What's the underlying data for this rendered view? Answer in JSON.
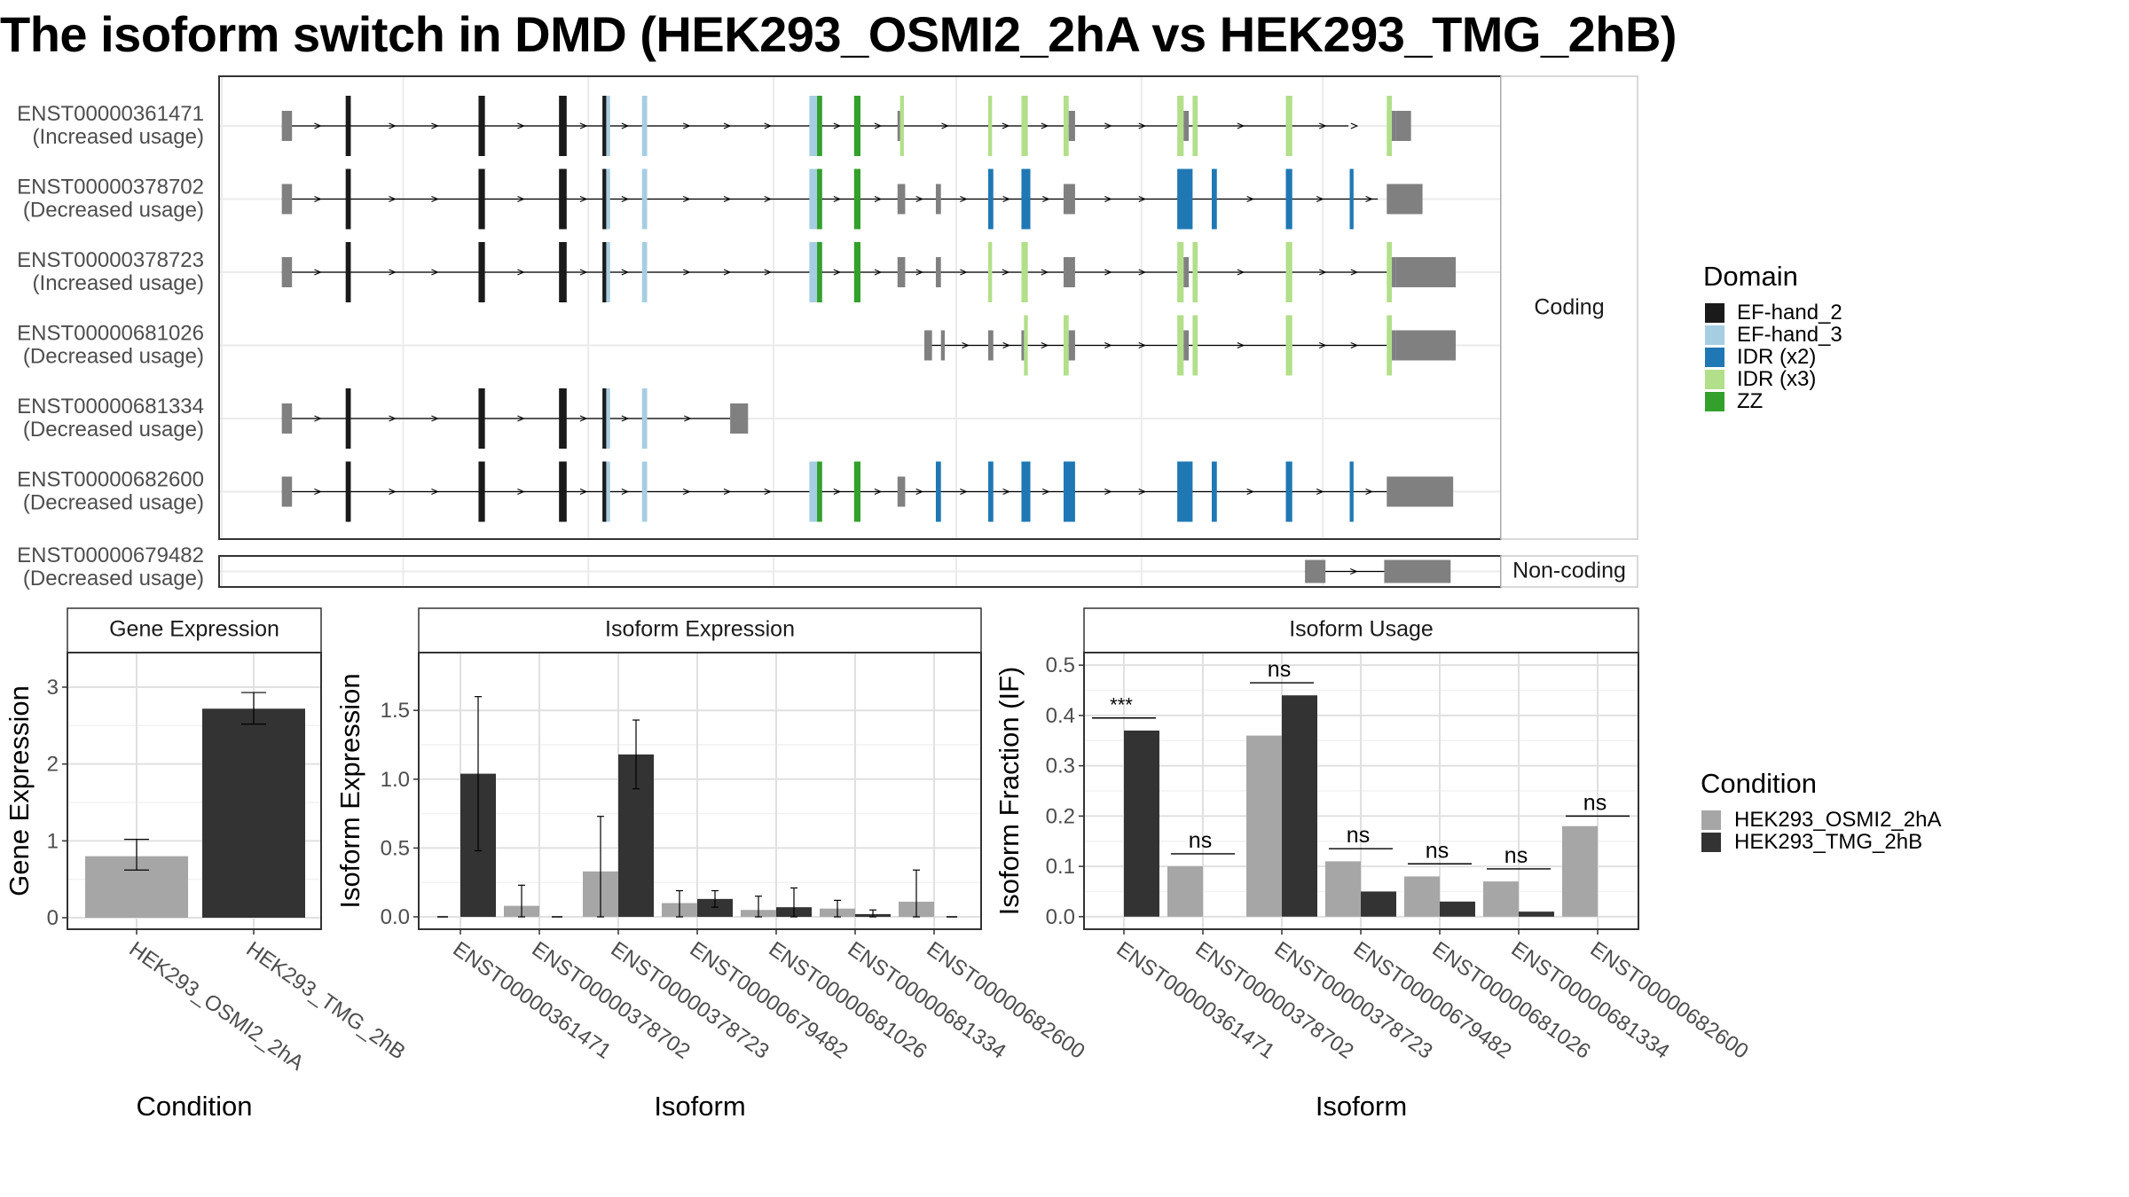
{
  "title": "The isoform switch in DMD (HEK293_OSMI2_2hA vs HEK293_TMG_2hB)",
  "colors": {
    "EF-hand_2": "#1a1a1a",
    "EF-hand_3": "#a6cee3",
    "IDR (x2)": "#1f78b4",
    "IDR (x3)": "#b2df8a",
    "ZZ": "#33a02c",
    "exon": "#808080",
    "cond1": "#a6a6a6",
    "cond2": "#333333"
  },
  "panel_labels": {
    "coding": "Coding",
    "noncoding": "Non-coding"
  },
  "domain_legend": {
    "title": "Domain",
    "items": [
      "EF-hand_2",
      "EF-hand_3",
      "IDR (x2)",
      "IDR (x3)",
      "ZZ"
    ]
  },
  "condition_legend": {
    "title": "Condition",
    "items": [
      "HEK293_OSMI2_2hA",
      "HEK293_TMG_2hB"
    ]
  },
  "chart_data": [
    {
      "type": "gene-structure",
      "genomic_range": [
        0,
        1000
      ],
      "coding": [
        {
          "id": "ENST00000361471",
          "usage": "(Increased usage)",
          "start": 47,
          "end": 882,
          "exons": [
            [
              47,
              55,
              "exon"
            ],
            [
              97,
              101,
              "EF-hand_2"
            ],
            [
              201,
              206,
              "EF-hand_2"
            ],
            [
              264,
              270,
              "EF-hand_2"
            ],
            [
              298,
              301,
              "EF-hand_2"
            ],
            [
              301,
              304,
              "EF-hand_3"
            ],
            [
              329,
              333,
              "EF-hand_3"
            ],
            [
              460,
              466,
              "EF-hand_3"
            ],
            [
              466,
              470,
              "ZZ"
            ],
            [
              495,
              500,
              "ZZ"
            ],
            [
              529,
              531,
              "exon"
            ],
            [
              531,
              534,
              "IDR (x3)"
            ],
            [
              600,
              603,
              "IDR (x3)"
            ],
            [
              626,
              631,
              "IDR (x3)"
            ],
            [
              659,
              663,
              "IDR (x3)"
            ],
            [
              663,
              668,
              "exon"
            ],
            [
              748,
              753,
              "IDR (x3)"
            ],
            [
              753,
              757,
              "exon"
            ],
            [
              760,
              764,
              "IDR (x3)"
            ],
            [
              833,
              838,
              "IDR (x3)"
            ],
            [
              912,
              916,
              "IDR (x3)"
            ],
            [
              916,
              919,
              "exon"
            ],
            [
              919,
              931,
              "exon"
            ]
          ]
        },
        {
          "id": "ENST00000378702",
          "usage": "(Decreased usage)",
          "start": 47,
          "end": 905,
          "exons": [
            [
              47,
              55,
              "exon"
            ],
            [
              97,
              101,
              "EF-hand_2"
            ],
            [
              201,
              206,
              "EF-hand_2"
            ],
            [
              264,
              270,
              "EF-hand_2"
            ],
            [
              298,
              301,
              "EF-hand_2"
            ],
            [
              301,
              304,
              "EF-hand_3"
            ],
            [
              329,
              333,
              "EF-hand_3"
            ],
            [
              460,
              466,
              "EF-hand_3"
            ],
            [
              466,
              470,
              "ZZ"
            ],
            [
              495,
              500,
              "ZZ"
            ],
            [
              529,
              535,
              "exon"
            ],
            [
              559,
              563,
              "exon"
            ],
            [
              600,
              604,
              "IDR (x2)"
            ],
            [
              626,
              633,
              "IDR (x2)"
            ],
            [
              659,
              668,
              "exon"
            ],
            [
              748,
              760,
              "IDR (x2)"
            ],
            [
              775,
              779,
              "IDR (x2)"
            ],
            [
              833,
              838,
              "IDR (x2)"
            ],
            [
              883,
              886,
              "IDR (x2)"
            ],
            [
              912,
              940,
              "exon"
            ]
          ]
        },
        {
          "id": "ENST00000378723",
          "usage": "(Increased usage)",
          "start": 47,
          "end": 912,
          "exons": [
            [
              47,
              55,
              "exon"
            ],
            [
              97,
              101,
              "EF-hand_2"
            ],
            [
              201,
              206,
              "EF-hand_2"
            ],
            [
              264,
              270,
              "EF-hand_2"
            ],
            [
              298,
              301,
              "EF-hand_2"
            ],
            [
              301,
              304,
              "EF-hand_3"
            ],
            [
              329,
              333,
              "EF-hand_3"
            ],
            [
              460,
              466,
              "EF-hand_3"
            ],
            [
              466,
              470,
              "ZZ"
            ],
            [
              495,
              500,
              "ZZ"
            ],
            [
              529,
              535,
              "exon"
            ],
            [
              559,
              563,
              "exon"
            ],
            [
              600,
              603,
              "IDR (x3)"
            ],
            [
              626,
              631,
              "IDR (x3)"
            ],
            [
              659,
              668,
              "exon"
            ],
            [
              748,
              753,
              "IDR (x3)"
            ],
            [
              753,
              757,
              "exon"
            ],
            [
              760,
              764,
              "IDR (x3)"
            ],
            [
              833,
              838,
              "IDR (x3)"
            ],
            [
              912,
              916,
              "IDR (x3)"
            ],
            [
              916,
              919,
              "exon"
            ],
            [
              919,
              966,
              "exon"
            ]
          ]
        },
        {
          "id": "ENST00000681026",
          "usage": "(Decreased usage)",
          "start": 550,
          "end": 912,
          "exons": [
            [
              550,
              556,
              "exon"
            ],
            [
              563,
              566,
              "exon"
            ],
            [
              600,
              604,
              "exon"
            ],
            [
              626,
              628,
              "exon"
            ],
            [
              628,
              631,
              "IDR (x3)"
            ],
            [
              659,
              663,
              "IDR (x3)"
            ],
            [
              663,
              668,
              "exon"
            ],
            [
              748,
              753,
              "IDR (x3)"
            ],
            [
              753,
              757,
              "exon"
            ],
            [
              760,
              764,
              "IDR (x3)"
            ],
            [
              833,
              838,
              "IDR (x3)"
            ],
            [
              912,
              916,
              "IDR (x3)"
            ],
            [
              916,
              919,
              "exon"
            ],
            [
              919,
              966,
              "exon"
            ]
          ]
        },
        {
          "id": "ENST00000681334",
          "usage": "(Decreased usage)",
          "start": 47,
          "end": 398,
          "exons": [
            [
              47,
              55,
              "exon"
            ],
            [
              97,
              101,
              "EF-hand_2"
            ],
            [
              201,
              206,
              "EF-hand_2"
            ],
            [
              264,
              270,
              "EF-hand_2"
            ],
            [
              298,
              301,
              "EF-hand_2"
            ],
            [
              301,
              304,
              "EF-hand_3"
            ],
            [
              329,
              333,
              "EF-hand_3"
            ],
            [
              398,
              412,
              "exon"
            ]
          ]
        },
        {
          "id": "ENST00000682600",
          "usage": "(Decreased usage)",
          "start": 47,
          "end": 912,
          "exons": [
            [
              47,
              55,
              "exon"
            ],
            [
              97,
              101,
              "EF-hand_2"
            ],
            [
              201,
              206,
              "EF-hand_2"
            ],
            [
              264,
              270,
              "EF-hand_2"
            ],
            [
              298,
              301,
              "EF-hand_2"
            ],
            [
              301,
              304,
              "EF-hand_3"
            ],
            [
              329,
              333,
              "EF-hand_3"
            ],
            [
              460,
              466,
              "EF-hand_3"
            ],
            [
              466,
              470,
              "ZZ"
            ],
            [
              495,
              500,
              "ZZ"
            ],
            [
              529,
              535,
              "exon"
            ],
            [
              559,
              563,
              "IDR (x2)"
            ],
            [
              600,
              604,
              "IDR (x2)"
            ],
            [
              626,
              633,
              "IDR (x2)"
            ],
            [
              659,
              668,
              "IDR (x2)"
            ],
            [
              748,
              760,
              "IDR (x2)"
            ],
            [
              775,
              779,
              "IDR (x2)"
            ],
            [
              833,
              838,
              "IDR (x2)"
            ],
            [
              883,
              886,
              "IDR (x2)"
            ],
            [
              912,
              964,
              "exon"
            ]
          ]
        }
      ],
      "noncoding": [
        {
          "id": "ENST00000679482",
          "usage": "(Decreased usage)",
          "start": 848,
          "end": 910,
          "exons": [
            [
              848,
              864,
              "exon"
            ],
            [
              910,
              962,
              "exon"
            ]
          ]
        }
      ]
    },
    {
      "type": "bar",
      "title": "Gene Expression",
      "xlabel": "Condition",
      "ylabel": "Gene Expression",
      "ylim": [
        -0.15,
        3.45
      ],
      "yticks": [
        0,
        1,
        2,
        3
      ],
      "categories": [
        "HEK293_OSMI2_2hA",
        "HEK293_TMG_2hB"
      ],
      "values": [
        0.8,
        2.72
      ],
      "errors": [
        [
          0.62,
          1.02
        ],
        [
          2.52,
          2.93
        ]
      ]
    },
    {
      "type": "bar",
      "title": "Isoform Expression",
      "xlabel": "Isoform",
      "ylabel": "Isoform Expression",
      "ylim": [
        -0.09,
        1.92
      ],
      "yticks": [
        0.0,
        0.5,
        1.0,
        1.5
      ],
      "categories": [
        "ENST00000361471",
        "ENST00000378702",
        "ENST00000378723",
        "ENST00000679482",
        "ENST00000681026",
        "ENST00000681334",
        "ENST00000682600"
      ],
      "series": [
        {
          "name": "HEK293_OSMI2_2hA",
          "values": [
            0.0,
            0.08,
            0.33,
            0.1,
            0.05,
            0.06,
            0.11
          ],
          "errors": [
            null,
            [
              0.0,
              0.23
            ],
            [
              0.0,
              0.73
            ],
            [
              0.0,
              0.19
            ],
            [
              0.0,
              0.15
            ],
            [
              0.0,
              0.12
            ],
            [
              0.0,
              0.34
            ]
          ]
        },
        {
          "name": "HEK293_TMG_2hB",
          "values": [
            1.04,
            0.0,
            1.18,
            0.13,
            0.07,
            0.02,
            0.0
          ],
          "errors": [
            [
              0.48,
              1.6
            ],
            null,
            [
              0.93,
              1.43
            ],
            [
              0.07,
              0.19
            ],
            [
              0.0,
              0.21
            ],
            [
              0.0,
              0.05
            ],
            null
          ]
        }
      ]
    },
    {
      "type": "bar",
      "title": "Isoform Usage",
      "xlabel": "Isoform",
      "ylabel": "Isoform Fraction (IF)",
      "ylim": [
        -0.025,
        0.525
      ],
      "yticks": [
        0.0,
        0.1,
        0.2,
        0.3,
        0.4,
        0.5
      ],
      "categories": [
        "ENST00000361471",
        "ENST00000378702",
        "ENST00000378723",
        "ENST00000679482",
        "ENST00000681026",
        "ENST00000681334",
        "ENST00000682600"
      ],
      "series": [
        {
          "name": "HEK293_OSMI2_2hA",
          "values": [
            0.0,
            0.1,
            0.36,
            0.11,
            0.08,
            0.07,
            0.18
          ]
        },
        {
          "name": "HEK293_TMG_2hB",
          "values": [
            0.37,
            0.0,
            0.44,
            0.05,
            0.03,
            0.01,
            0.0
          ]
        }
      ],
      "annotations": [
        {
          "category": "ENST00000361471",
          "text": "***",
          "y": 0.395
        },
        {
          "category": "ENST00000378702",
          "text": "ns",
          "y": 0.125
        },
        {
          "category": "ENST00000378723",
          "text": "ns",
          "y": 0.465
        },
        {
          "category": "ENST00000679482",
          "text": "ns",
          "y": 0.135
        },
        {
          "category": "ENST00000681026",
          "text": "ns",
          "y": 0.105
        },
        {
          "category": "ENST00000681334",
          "text": "ns",
          "y": 0.095
        },
        {
          "category": "ENST00000682600",
          "text": "ns",
          "y": 0.2
        }
      ]
    }
  ]
}
